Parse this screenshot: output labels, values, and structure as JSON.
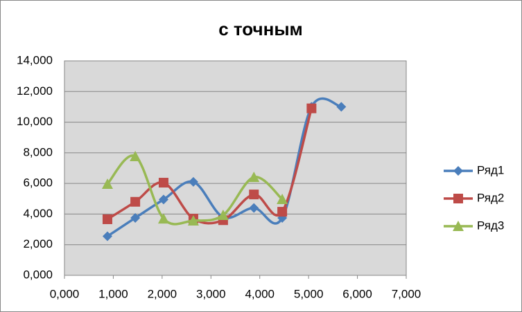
{
  "chart_data": {
    "type": "scatter",
    "smooth": true,
    "title": "с точным",
    "xlim": [
      0,
      7
    ],
    "xticks": [
      {
        "value": 0,
        "label": "0,000"
      },
      {
        "value": 1,
        "label": "1,000"
      },
      {
        "value": 2,
        "label": "2,000"
      },
      {
        "value": 3,
        "label": "3,000"
      },
      {
        "value": 4,
        "label": "4,000"
      },
      {
        "value": 5,
        "label": "5,000"
      },
      {
        "value": 6,
        "label": "6,000"
      },
      {
        "value": 7,
        "label": "7,000"
      }
    ],
    "ylim": [
      0,
      14
    ],
    "yticks": [
      {
        "value": 0,
        "label": "0,000"
      },
      {
        "value": 2,
        "label": "2,000"
      },
      {
        "value": 4,
        "label": "4,000"
      },
      {
        "value": 6,
        "label": "6,000"
      },
      {
        "value": 8,
        "label": "8,000"
      },
      {
        "value": 10,
        "label": "10,000"
      },
      {
        "value": 12,
        "label": "12,000"
      },
      {
        "value": 14,
        "label": "14,000"
      }
    ],
    "grid": true,
    "legend": "right",
    "series": [
      {
        "name": "Ряд1",
        "color": "#4a7ebb",
        "marker": "diamond",
        "x": [
          0.88,
          1.45,
          2.03,
          2.64,
          3.25,
          3.88,
          4.46,
          5.06,
          5.67
        ],
        "values": [
          2.55,
          3.75,
          4.95,
          6.1,
          3.8,
          4.4,
          3.75,
          11,
          11
        ]
      },
      {
        "name": "Ряд2",
        "color": "#be4b48",
        "marker": "square",
        "x": [
          0.88,
          1.45,
          2.03,
          2.64,
          3.25,
          3.88,
          4.46,
          5.06
        ],
        "values": [
          3.66,
          4.8,
          6.05,
          3.7,
          3.6,
          5.28,
          4.15,
          10.9
        ]
      },
      {
        "name": "Ряд3",
        "color": "#98b954",
        "marker": "triangle",
        "x": [
          0.88,
          1.45,
          2.03,
          2.64,
          3.25,
          3.88,
          4.46
        ],
        "values": [
          5.96,
          7.77,
          3.7,
          3.57,
          3.93,
          6.41,
          4.97
        ]
      }
    ]
  }
}
